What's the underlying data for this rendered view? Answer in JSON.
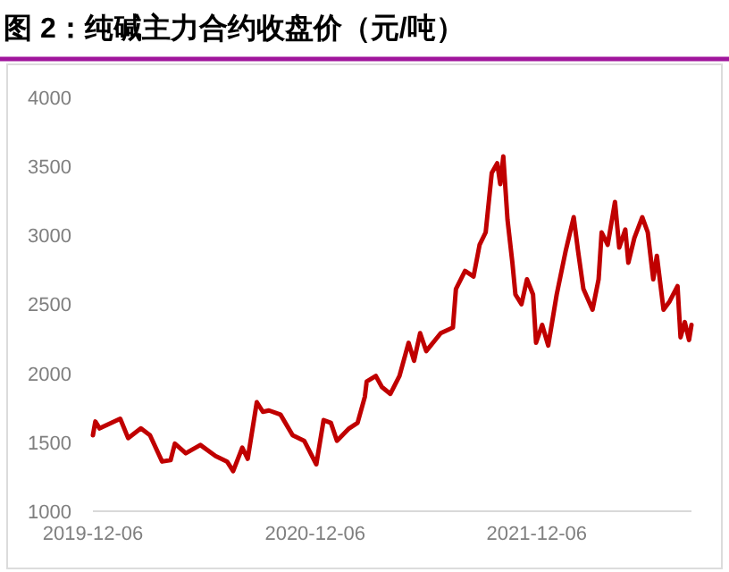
{
  "chart_data": {
    "type": "line",
    "title": "图 2：纯碱主力合约收盘价（元/吨）",
    "x": [
      "2019-12-06",
      "2019-12-10",
      "2019-12-17",
      "2020-01-05",
      "2020-01-20",
      "2020-02-02",
      "2020-02-23",
      "2020-03-09",
      "2020-03-29",
      "2020-04-12",
      "2020-04-19",
      "2020-05-07",
      "2020-05-31",
      "2020-06-25",
      "2020-07-14",
      "2020-07-24",
      "2020-08-08",
      "2020-08-17",
      "2020-09-01",
      "2020-09-11",
      "2020-09-21",
      "2020-10-10",
      "2020-10-30",
      "2020-11-18",
      "2020-12-08",
      "2020-12-20",
      "2021-01-01",
      "2021-01-11",
      "2021-01-31",
      "2021-02-14",
      "2021-02-26",
      "2021-03-01",
      "2021-03-16",
      "2021-03-26",
      "2021-04-09",
      "2021-04-24",
      "2021-05-09",
      "2021-05-18",
      "2021-05-28",
      "2021-06-07",
      "2021-07-01",
      "2021-07-21",
      "2021-07-26",
      "2021-08-10",
      "2021-08-24",
      "2021-09-03",
      "2021-09-13",
      "2021-09-23",
      "2021-10-02",
      "2021-10-07",
      "2021-10-12",
      "2021-10-19",
      "2021-10-27",
      "2021-11-01",
      "2021-11-11",
      "2021-11-20",
      "2021-11-30",
      "2021-12-05",
      "2021-12-15",
      "2021-12-25",
      "2022-01-08",
      "2022-01-23",
      "2022-02-05",
      "2022-02-12",
      "2022-02-21",
      "2022-03-08",
      "2022-03-18",
      "2022-03-23",
      "2022-04-02",
      "2022-04-14",
      "2022-04-21",
      "2022-05-01",
      "2022-05-06",
      "2022-05-16",
      "2022-05-29",
      "2022-06-07",
      "2022-06-16",
      "2022-06-22",
      "2022-07-03",
      "2022-07-13",
      "2022-07-26",
      "2022-07-31",
      "2022-08-07",
      "2022-08-14",
      "2022-08-18"
    ],
    "series": [
      {
        "color": "#c00000",
        "values": [
          1550,
          1650,
          1600,
          1640,
          1670,
          1530,
          1600,
          1550,
          1360,
          1370,
          1490,
          1420,
          1480,
          1400,
          1360,
          1290,
          1460,
          1380,
          1790,
          1720,
          1730,
          1700,
          1550,
          1510,
          1340,
          1660,
          1640,
          1510,
          1600,
          1640,
          1830,
          1940,
          1980,
          1900,
          1850,
          1980,
          2220,
          2090,
          2290,
          2160,
          2290,
          2330,
          2610,
          2740,
          2700,
          2930,
          3020,
          3450,
          3520,
          3370,
          3570,
          3110,
          2800,
          2570,
          2500,
          2680,
          2570,
          2220,
          2350,
          2200,
          2570,
          2890,
          3130,
          2890,
          2610,
          2460,
          2680,
          3020,
          2930,
          3240,
          2910,
          3040,
          2800,
          2980,
          3130,
          3020,
          2680,
          2850,
          2460,
          2520,
          2630,
          2260,
          2370,
          2240,
          2350
        ]
      }
    ],
    "xlim": [
      "2019-12-06",
      "2022-08-18"
    ],
    "ylim": [
      1000,
      4000
    ],
    "xticks": [
      "2019-12-06",
      "2020-12-06",
      "2021-12-06"
    ],
    "yticks": [
      1000,
      1500,
      2000,
      2500,
      3000,
      3500,
      4000
    ]
  }
}
